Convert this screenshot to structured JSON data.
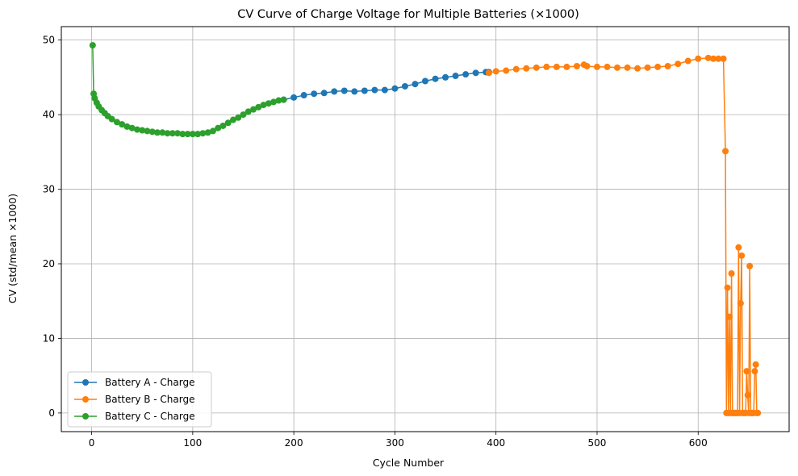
{
  "chart_data": {
    "type": "line",
    "title": "CV Curve of Charge Voltage for Multiple Batteries (×1000)",
    "xlabel": "Cycle Number",
    "ylabel": "CV (std/mean ×1000)",
    "xlim": [
      -30,
      690
    ],
    "ylim": [
      -2.5,
      51.8
    ],
    "xticks": [
      0,
      100,
      200,
      300,
      400,
      500,
      600
    ],
    "yticks": [
      0,
      10,
      20,
      30,
      40,
      50
    ],
    "grid": true,
    "legend_position": "lower-left",
    "series": [
      {
        "name": "Battery A - Charge",
        "color": "#1f77b4",
        "x": [
          190,
          200,
          210,
          220,
          230,
          240,
          250,
          260,
          270,
          280,
          290,
          300,
          310,
          320,
          330,
          340,
          350,
          360,
          370,
          380,
          390,
          393
        ],
        "y": [
          42.0,
          42.3,
          42.6,
          42.8,
          42.9,
          43.1,
          43.2,
          43.1,
          43.2,
          43.3,
          43.3,
          43.5,
          43.8,
          44.1,
          44.5,
          44.8,
          45.0,
          45.2,
          45.4,
          45.6,
          45.7,
          45.7
        ]
      },
      {
        "name": "Battery B - Charge",
        "color": "#ff7f0e",
        "x": [
          393,
          400,
          410,
          420,
          430,
          440,
          450,
          460,
          470,
          480,
          487,
          490,
          500,
          510,
          520,
          530,
          540,
          550,
          560,
          570,
          580,
          590,
          600,
          610,
          615,
          620,
          625,
          627,
          628,
          629,
          630,
          631,
          632,
          633,
          634,
          635,
          636,
          637,
          638,
          639,
          640,
          641,
          642,
          643,
          644,
          645,
          646,
          647,
          648,
          649,
          650,
          651,
          652,
          653,
          654,
          655,
          656,
          657,
          658,
          659
        ],
        "y": [
          45.6,
          45.8,
          45.9,
          46.1,
          46.2,
          46.3,
          46.4,
          46.4,
          46.4,
          46.5,
          46.7,
          46.5,
          46.4,
          46.4,
          46.3,
          46.3,
          46.2,
          46.3,
          46.4,
          46.5,
          46.8,
          47.2,
          47.5,
          47.6,
          47.5,
          47.5,
          47.5,
          35.1,
          0.0,
          16.8,
          0.0,
          12.9,
          0.0,
          18.7,
          0.0,
          0.0,
          0.0,
          0.0,
          0.0,
          0.0,
          22.2,
          0.0,
          14.7,
          21.1,
          0.0,
          0.0,
          0.0,
          0.0,
          5.6,
          2.4,
          0.0,
          19.7,
          0.0,
          0.0,
          0.0,
          0.0,
          5.6,
          6.5,
          0.0,
          0.0
        ]
      },
      {
        "name": "Battery C - Charge",
        "color": "#2ca02c",
        "x": [
          1,
          2,
          3,
          5,
          7,
          10,
          13,
          16,
          20,
          25,
          30,
          35,
          40,
          45,
          50,
          55,
          60,
          65,
          70,
          75,
          80,
          85,
          90,
          95,
          100,
          105,
          110,
          115,
          120,
          125,
          130,
          135,
          140,
          145,
          150,
          155,
          160,
          165,
          170,
          175,
          180,
          185,
          190
        ],
        "y": [
          49.3,
          42.8,
          42.2,
          41.6,
          41.1,
          40.6,
          40.2,
          39.8,
          39.4,
          39.0,
          38.7,
          38.4,
          38.2,
          38.0,
          37.9,
          37.8,
          37.7,
          37.6,
          37.6,
          37.5,
          37.5,
          37.5,
          37.4,
          37.4,
          37.4,
          37.4,
          37.5,
          37.6,
          37.8,
          38.2,
          38.5,
          38.9,
          39.3,
          39.6,
          40.0,
          40.4,
          40.7,
          41.0,
          41.3,
          41.5,
          41.7,
          41.9,
          42.0
        ]
      }
    ]
  }
}
